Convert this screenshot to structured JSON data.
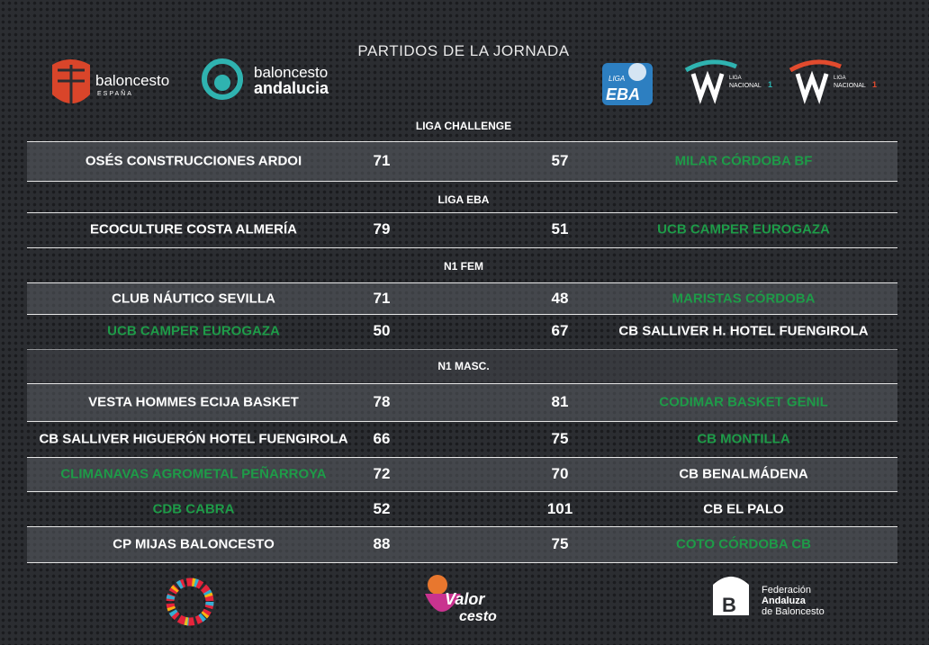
{
  "header": {
    "title": "PARTIDOS DE LA JORNADA",
    "logos": {
      "feb_top": "baloncesto",
      "feb_bottom": "ESPAÑA",
      "andalucia_top": "baloncesto",
      "andalucia_bottom": "andalucia",
      "eba_top": "LIGA",
      "eba_bottom": "EBA",
      "n1_top": "LIGA",
      "n1_bottom": "NACIONAL",
      "n1_number": "1"
    }
  },
  "sections": [
    {
      "name": "LIGA CHALLENGE",
      "games": [
        {
          "home": "OSÉS CONSTRUCCIONES ARDOI",
          "home_score": "71",
          "away_score": "57",
          "away": "MILAR CÓRDOBA BF",
          "highlight": "away"
        }
      ]
    },
    {
      "name": "LIGA EBA",
      "games": [
        {
          "home": "ECOCULTURE COSTA ALMERÍA",
          "home_score": "79",
          "away_score": "51",
          "away": "UCB CAMPER EUROGAZA",
          "highlight": "away"
        }
      ]
    },
    {
      "name": "N1 FEM",
      "games": [
        {
          "home": "CLUB NÁUTICO SEVILLA",
          "home_score": "71",
          "away_score": "48",
          "away": "MARISTAS CÓRDOBA",
          "highlight": "away"
        },
        {
          "home": "UCB CAMPER EUROGAZA",
          "home_score": "50",
          "away_score": "67",
          "away": "CB SALLIVER H. HOTEL FUENGIROLA",
          "highlight": "home"
        }
      ]
    },
    {
      "name": "N1 MASC.",
      "games": [
        {
          "home": "VESTA HOMMES ECIJA BASKET",
          "home_score": "78",
          "away_score": "81",
          "away": "CODIMAR BASKET GENIL",
          "highlight": "away"
        },
        {
          "home": "CB SALLIVER HIGUERÓN HOTEL FUENGIROLA",
          "home_score": "66",
          "away_score": "75",
          "away": "CB MONTILLA",
          "highlight": "away"
        },
        {
          "home": "CLIMANAVAS AGROMETAL PEÑARROYA",
          "home_score": "72",
          "away_score": "70",
          "away": "CB BENALMÁDENA",
          "highlight": "home"
        },
        {
          "home": "CDB CABRA",
          "home_score": "52",
          "away_score": "101",
          "away": "CB EL PALO",
          "highlight": "home"
        },
        {
          "home": "CP MIJAS BALONCESTO",
          "home_score": "88",
          "away_score": "75",
          "away": "COTO CÓRDOBA CB",
          "highlight": "away"
        }
      ]
    }
  ],
  "footer": {
    "valor_top": "Valor",
    "valor_bottom": "cesto",
    "fab_line1": "Federación",
    "fab_line2": "Andaluza",
    "fab_line3": "de Baloncesto"
  }
}
